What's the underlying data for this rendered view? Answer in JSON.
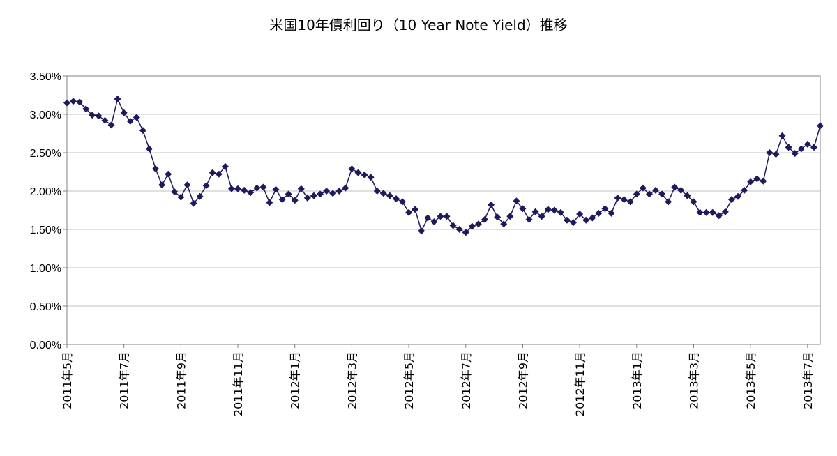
{
  "chart_data": {
    "type": "line",
    "title": "米国10年債利回り（10 Year Note Yield）推移",
    "xlabel": "",
    "ylabel": "",
    "ylim": [
      0,
      0.035
    ],
    "yticks": [
      "0.00%",
      "0.50%",
      "1.00%",
      "1.50%",
      "2.00%",
      "2.50%",
      "3.00%",
      "3.50%"
    ],
    "grid": "horizontal",
    "legend": "none",
    "marker": "diamond",
    "line_color": "#1f1a5c",
    "x_tick_labels": [
      "2011年5月",
      "2011年7月",
      "2011年9月",
      "2011年11月",
      "2012年1月",
      "2012年3月",
      "2012年5月",
      "2012年7月",
      "2012年9月",
      "2012年11月",
      "2013年1月",
      "2013年3月",
      "2013年5月",
      "2013年7月"
    ],
    "x_tick_index": [
      0,
      9,
      18,
      27,
      36,
      45,
      54,
      63,
      72,
      81,
      90,
      99,
      108,
      117
    ],
    "series": [
      {
        "values": [
          0.0315,
          0.0317,
          0.0316,
          0.0307,
          0.0299,
          0.0298,
          0.0292,
          0.0286,
          0.032,
          0.0302,
          0.0291,
          0.0296,
          0.0279,
          0.0255,
          0.0229,
          0.0208,
          0.0222,
          0.0199,
          0.0192,
          0.0208,
          0.0184,
          0.0193,
          0.0207,
          0.0224,
          0.0222,
          0.0232,
          0.0203,
          0.0203,
          0.0201,
          0.0198,
          0.0204,
          0.0205,
          0.0185,
          0.0202,
          0.0189,
          0.0196,
          0.0188,
          0.0203,
          0.0191,
          0.0194,
          0.0196,
          0.02,
          0.0197,
          0.02,
          0.0204,
          0.0229,
          0.0224,
          0.0221,
          0.0218,
          0.02,
          0.0197,
          0.0194,
          0.019,
          0.0186,
          0.0172,
          0.0176,
          0.0148,
          0.0165,
          0.016,
          0.0167,
          0.0167,
          0.0155,
          0.015,
          0.0146,
          0.0154,
          0.0157,
          0.0163,
          0.0182,
          0.0166,
          0.0157,
          0.0167,
          0.0187,
          0.0177,
          0.0163,
          0.0173,
          0.0167,
          0.0176,
          0.0175,
          0.0172,
          0.0162,
          0.0159,
          0.017,
          0.0162,
          0.0165,
          0.0171,
          0.0177,
          0.0171,
          0.0191,
          0.0189,
          0.0186,
          0.0196,
          0.0204,
          0.0196,
          0.0201,
          0.0196,
          0.0186,
          0.0205,
          0.0201,
          0.0194,
          0.0186,
          0.0172,
          0.0172,
          0.0172,
          0.0168,
          0.0173,
          0.0189,
          0.0193,
          0.0201,
          0.0212,
          0.0216,
          0.0213,
          0.025,
          0.0248,
          0.0272,
          0.0257,
          0.0249,
          0.0255,
          0.0261,
          0.0257,
          0.0285
        ]
      }
    ]
  }
}
